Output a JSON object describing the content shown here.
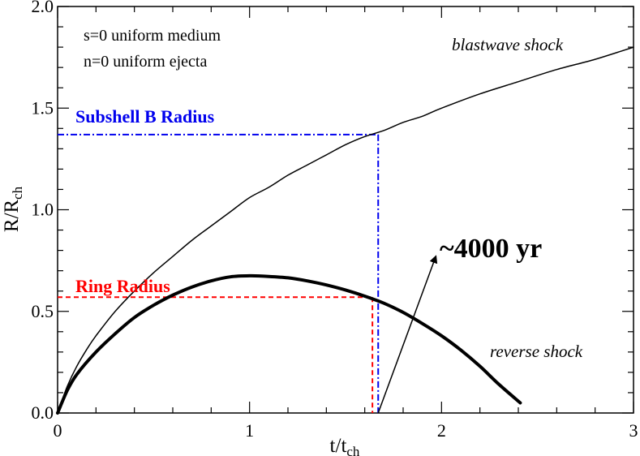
{
  "chart_data": {
    "type": "line",
    "xlabel": "t/t",
    "xlabel_sub": "ch",
    "ylabel": "R/R",
    "ylabel_sub": "ch",
    "xlim": [
      0,
      3
    ],
    "ylim": [
      0,
      2
    ],
    "x_ticks": [
      {
        "value": 0,
        "label": "0"
      },
      {
        "value": 1,
        "label": "1"
      },
      {
        "value": 2,
        "label": "2"
      },
      {
        "value": 3,
        "label": "3"
      }
    ],
    "y_ticks": [
      {
        "value": 0,
        "label": "0.0"
      },
      {
        "value": 0.5,
        "label": "0.5"
      },
      {
        "value": 1,
        "label": "1.0"
      },
      {
        "value": 1.5,
        "label": "1.5"
      },
      {
        "value": 2,
        "label": "2.0"
      }
    ],
    "grid": false,
    "series": [
      {
        "name": "blastwave shock",
        "color": "#000000",
        "x": [
          0,
          0.05,
          0.1,
          0.15,
          0.2,
          0.3,
          0.4,
          0.5,
          0.6,
          0.7,
          0.8,
          0.9,
          1.0,
          1.1,
          1.2,
          1.3,
          1.4,
          1.5,
          1.6,
          1.7,
          1.8,
          1.9,
          2.0,
          2.2,
          2.4,
          2.6,
          2.8,
          3.0
        ],
        "y": [
          0,
          0.13,
          0.23,
          0.31,
          0.38,
          0.5,
          0.6,
          0.69,
          0.77,
          0.85,
          0.92,
          0.99,
          1.06,
          1.11,
          1.17,
          1.22,
          1.27,
          1.32,
          1.36,
          1.39,
          1.43,
          1.46,
          1.5,
          1.57,
          1.63,
          1.69,
          1.74,
          1.8
        ]
      },
      {
        "name": "reverse shock",
        "color": "#000000",
        "x": [
          0,
          0.05,
          0.1,
          0.2,
          0.3,
          0.4,
          0.5,
          0.6,
          0.7,
          0.8,
          0.9,
          1.0,
          1.1,
          1.2,
          1.3,
          1.4,
          1.5,
          1.6,
          1.7,
          1.8,
          1.9,
          2.0,
          2.1,
          2.2,
          2.3,
          2.41
        ],
        "y": [
          0,
          0.11,
          0.19,
          0.3,
          0.39,
          0.47,
          0.53,
          0.58,
          0.62,
          0.65,
          0.67,
          0.675,
          0.672,
          0.665,
          0.65,
          0.63,
          0.605,
          0.575,
          0.54,
          0.495,
          0.44,
          0.38,
          0.31,
          0.23,
          0.14,
          0.05
        ]
      }
    ],
    "reference_lines": [
      {
        "label": "Subshell B Radius",
        "color": "#0000ee",
        "x": 1.67,
        "y": 1.37,
        "style": "dash-dot"
      },
      {
        "label": "Ring Radius",
        "color": "#ff0000",
        "x": 1.64,
        "y": 0.57,
        "style": "dashed"
      }
    ],
    "annotations": {
      "medium": "s=0 uniform medium",
      "ejecta": "n=0 uniform ejecta",
      "blastwave": "blastwave shock",
      "reverse": "reverse shock",
      "age": "~4000 yr"
    },
    "arrow": {
      "from": [
        1.67,
        0.0
      ],
      "to": [
        1.97,
        0.77
      ]
    }
  }
}
